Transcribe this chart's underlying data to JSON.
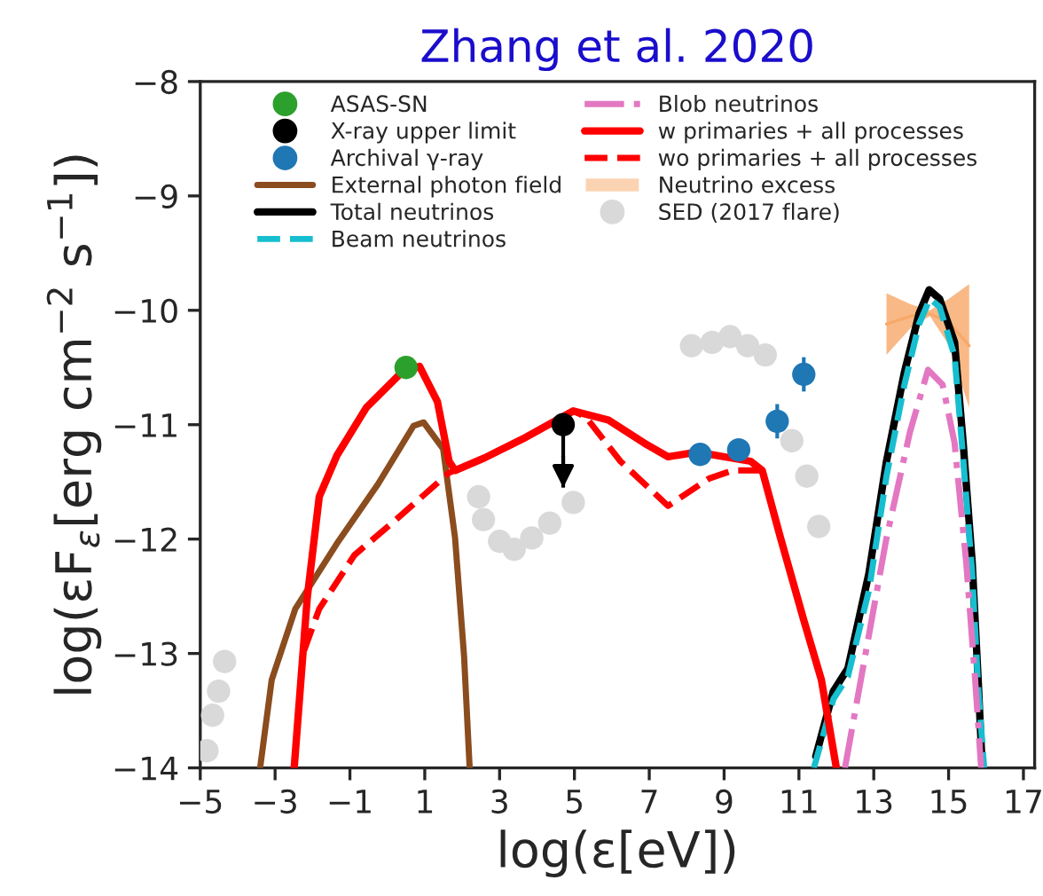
{
  "chart_data": {
    "type": "line",
    "title": "Zhang et al. 2020",
    "xlabel": "log(ε[eV])",
    "ylabel": "log(εF$_{ε}$[erg cm$^{−2}$ s$^{−1}$])",
    "xlim": [
      -5,
      17.3
    ],
    "ylim": [
      -14,
      -8
    ],
    "xticks": [
      -5,
      -3,
      -1,
      1,
      3,
      5,
      7,
      9,
      11,
      13,
      15,
      17
    ],
    "yticks": [
      -14,
      -13,
      -12,
      -11,
      -10,
      -9,
      -8
    ],
    "grid": false,
    "legend": "top",
    "series": [
      {
        "name": "ASAS-SN",
        "type": "scatter",
        "marker": "circle",
        "color": "#2ca02c",
        "x": [
          0.5
        ],
        "values": [
          -10.5
        ]
      },
      {
        "name": "X-ray upper limit",
        "type": "scatter",
        "marker": "circle",
        "color": "#000000",
        "x": [
          4.7
        ],
        "values": [
          -11.0
        ],
        "errors": [
          [
            -11.55,
            -11.0
          ]
        ]
      },
      {
        "name": "Archival γ-ray",
        "type": "scatter",
        "marker": "circle",
        "color": "#1f77b4",
        "x": [
          8.36,
          9.39,
          10.42,
          11.13
        ],
        "values": [
          -11.26,
          -11.22,
          -10.97,
          -10.56
        ],
        "errors": [
          null,
          null,
          0.15,
          0.15
        ],
        "xerrors": [
          null,
          0.2,
          0.25,
          null
        ]
      },
      {
        "name": "External photon field",
        "line_style": "solid",
        "color": "#8b4c1e",
        "x": [
          -3.4,
          -3.09,
          -2.46,
          -1.35,
          -0.25,
          0.7,
          0.97,
          1.49,
          1.81,
          2.05,
          2.2
        ],
        "values": [
          -14,
          -13.23,
          -12.61,
          -12.04,
          -11.52,
          -11.01,
          -10.98,
          -11.21,
          -11.99,
          -13.02,
          -14
        ]
      },
      {
        "name": "Total neutrinos",
        "line_style": "solid",
        "color": "#000000",
        "x": [
          11.45,
          11.92,
          12.31,
          12.87,
          13.34,
          13.82,
          14.21,
          14.48,
          14.76,
          15.16,
          15.39,
          15.63,
          15.79,
          15.9
        ],
        "values": [
          -13.9,
          -13.33,
          -13.13,
          -12.3,
          -11.32,
          -10.54,
          -10.03,
          -9.82,
          -9.9,
          -10.28,
          -11.16,
          -12.2,
          -13.23,
          -14
        ]
      },
      {
        "name": "Beam neutrinos",
        "line_style": "dashed",
        "color": "#17becf",
        "x": [
          11.4,
          11.92,
          12.31,
          12.87,
          13.34,
          13.82,
          14.21,
          14.5,
          14.76,
          15.16,
          15.39,
          15.63,
          15.79,
          15.95
        ],
        "values": [
          -14,
          -13.4,
          -13.2,
          -12.45,
          -11.45,
          -10.65,
          -10.12,
          -9.9,
          -9.97,
          -10.4,
          -11.3,
          -12.3,
          -13.3,
          -14
        ]
      },
      {
        "name": "Blob neutrinos",
        "line_style": "dashdot",
        "color": "#e377c2",
        "x": [
          12.23,
          12.71,
          13.34,
          13.97,
          14.45,
          14.84,
          15.16,
          15.47,
          15.71,
          15.87
        ],
        "values": [
          -14,
          -13.13,
          -11.99,
          -11.06,
          -10.52,
          -10.65,
          -11.16,
          -12.2,
          -13.23,
          -14
        ]
      },
      {
        "name": "w primaries + all processes",
        "line_style": "solid",
        "color": "#ff0000",
        "x": [
          -2.49,
          -2.14,
          -1.82,
          -1.35,
          -0.56,
          0.39,
          0.86,
          1.34,
          1.65,
          1.81,
          2.6,
          3.7,
          4.97,
          5.91,
          6.86,
          7.5,
          8.28,
          9.71,
          10.02,
          10.5,
          11.13,
          11.6,
          12.0
        ],
        "values": [
          -14,
          -12.51,
          -11.63,
          -11.27,
          -10.85,
          -10.54,
          -10.49,
          -10.8,
          -11.32,
          -11.4,
          -11.29,
          -11.11,
          -10.88,
          -10.96,
          -11.16,
          -11.28,
          -11.24,
          -11.32,
          -11.4,
          -11.98,
          -12.71,
          -13.23,
          -14
        ]
      },
      {
        "name": "wo primaries + all processes",
        "line_style": "dashed",
        "color": "#ff0000",
        "x": [
          -2.22,
          -1.82,
          -0.88,
          0.23,
          1.65,
          2.6,
          3.7,
          4.97,
          5.3,
          6.23,
          7.5,
          8.6,
          9.23,
          9.87,
          10.02
        ],
        "values": [
          -12.97,
          -12.61,
          -12.14,
          -11.83,
          -11.42,
          -11.29,
          -11.11,
          -10.88,
          -10.93,
          -11.32,
          -11.71,
          -11.47,
          -11.4,
          -11.4,
          -11.4
        ]
      },
      {
        "name": "Neutrino excess",
        "color": "#f8a868",
        "x": [
          13.34,
          14.0,
          14.5,
          15.0,
          15.55
        ],
        "values": [
          -10.12,
          -10.05,
          -10.03,
          -10.1,
          -10.31
        ],
        "lower": [
          -10.39,
          -10.15,
          -10.05,
          -10.3,
          -10.85
        ],
        "upper": [
          -9.85,
          -9.95,
          -10.0,
          -9.9,
          -9.77
        ]
      },
      {
        "name": "SED (2017 flare)",
        "type": "scatter",
        "marker": "circle",
        "color": "#d9d9d9",
        "x": [
          -4.82,
          -4.67,
          -4.51,
          -4.35,
          2.44,
          2.57,
          3.0,
          3.39,
          3.86,
          4.34,
          4.97,
          8.13,
          8.68,
          9.16,
          9.63,
          10.1,
          10.81,
          11.21,
          11.53
        ],
        "values": [
          -13.85,
          -13.54,
          -13.33,
          -13.07,
          -11.63,
          -11.83,
          -12.02,
          -12.09,
          -11.99,
          -11.86,
          -11.68,
          -10.31,
          -10.28,
          -10.23,
          -10.31,
          -10.39,
          -11.14,
          -11.45,
          -11.89
        ]
      }
    ]
  }
}
